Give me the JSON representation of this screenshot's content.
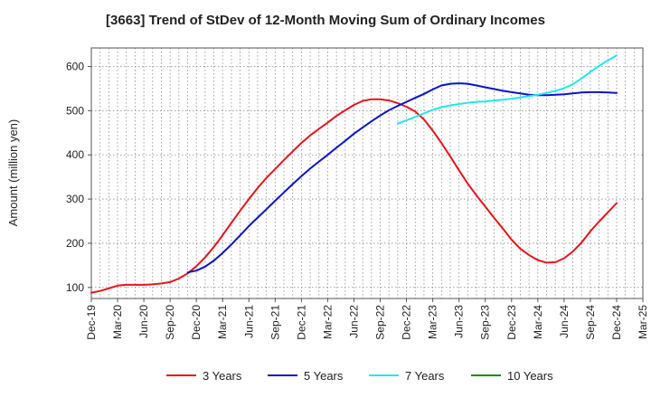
{
  "chart_data": {
    "type": "line",
    "title": "[3663]  Trend of StDev of 12-Month Moving Sum of Ordinary Incomes",
    "xlabel": "",
    "ylabel": "Amount (million yen)",
    "ylim": [
      75,
      642
    ],
    "yticks": [
      100,
      200,
      300,
      400,
      500,
      600
    ],
    "grid": true,
    "legend_position": "bottom",
    "categories": [
      "Dec-19",
      "Mar-20",
      "Jun-20",
      "Sep-20",
      "Dec-20",
      "Mar-21",
      "Jun-21",
      "Sep-21",
      "Dec-21",
      "Mar-22",
      "Jun-22",
      "Sep-22",
      "Dec-22",
      "Mar-23",
      "Jun-23",
      "Sep-23",
      "Dec-23",
      "Mar-24",
      "Jun-24",
      "Sep-24",
      "Dec-24",
      "Mar-25"
    ],
    "series": [
      {
        "name": "3 Years",
        "color": "#e8141b",
        "points": [
          [
            0,
            88
          ],
          [
            0.33,
            92
          ],
          [
            0.67,
            98
          ],
          [
            1,
            104
          ],
          [
            1.33,
            106
          ],
          [
            1.67,
            106
          ],
          [
            2,
            106
          ],
          [
            2.33,
            107
          ],
          [
            2.67,
            109
          ],
          [
            3,
            112
          ],
          [
            3.33,
            120
          ],
          [
            3.67,
            132
          ],
          [
            4,
            148
          ],
          [
            4.33,
            168
          ],
          [
            4.67,
            192
          ],
          [
            5,
            218
          ],
          [
            5.33,
            246
          ],
          [
            5.67,
            274
          ],
          [
            6,
            300
          ],
          [
            6.33,
            325
          ],
          [
            6.67,
            348
          ],
          [
            7,
            368
          ],
          [
            7.33,
            388
          ],
          [
            7.67,
            408
          ],
          [
            8,
            427
          ],
          [
            8.33,
            444
          ],
          [
            8.67,
            459
          ],
          [
            9,
            473
          ],
          [
            9.33,
            488
          ],
          [
            9.67,
            501
          ],
          [
            10,
            513
          ],
          [
            10.33,
            522
          ],
          [
            10.67,
            526
          ],
          [
            11,
            526
          ],
          [
            11.33,
            523
          ],
          [
            11.67,
            517
          ],
          [
            12,
            509
          ],
          [
            12.33,
            498
          ],
          [
            12.67,
            480
          ],
          [
            13,
            455
          ],
          [
            13.33,
            427
          ],
          [
            13.67,
            396
          ],
          [
            14,
            365
          ],
          [
            14.33,
            335
          ],
          [
            14.67,
            308
          ],
          [
            15,
            283
          ],
          [
            15.33,
            258
          ],
          [
            15.67,
            233
          ],
          [
            16,
            208
          ],
          [
            16.33,
            188
          ],
          [
            16.67,
            173
          ],
          [
            17,
            162
          ],
          [
            17.33,
            156
          ],
          [
            17.67,
            157
          ],
          [
            18,
            166
          ],
          [
            18.33,
            181
          ],
          [
            18.67,
            202
          ],
          [
            19,
            227
          ],
          [
            19.33,
            249
          ],
          [
            19.67,
            270
          ],
          [
            20,
            291
          ]
        ]
      },
      {
        "name": "5 Years",
        "color": "#0a14c8",
        "points": [
          [
            3.67,
            134
          ],
          [
            4,
            138
          ],
          [
            4.33,
            147
          ],
          [
            4.67,
            161
          ],
          [
            5,
            178
          ],
          [
            5.33,
            197
          ],
          [
            5.67,
            218
          ],
          [
            6,
            239
          ],
          [
            6.33,
            258
          ],
          [
            6.67,
            277
          ],
          [
            7,
            296
          ],
          [
            7.33,
            315
          ],
          [
            7.67,
            334
          ],
          [
            8,
            352
          ],
          [
            8.33,
            369
          ],
          [
            8.67,
            385
          ],
          [
            9,
            400
          ],
          [
            9.33,
            416
          ],
          [
            9.67,
            432
          ],
          [
            10,
            448
          ],
          [
            10.33,
            462
          ],
          [
            10.67,
            476
          ],
          [
            11,
            489
          ],
          [
            11.33,
            501
          ],
          [
            11.67,
            511
          ],
          [
            12,
            520
          ],
          [
            12.33,
            529
          ],
          [
            12.67,
            538
          ],
          [
            13,
            548
          ],
          [
            13.33,
            557
          ],
          [
            13.67,
            561
          ],
          [
            14,
            562
          ],
          [
            14.33,
            561
          ],
          [
            14.67,
            557
          ],
          [
            15,
            553
          ],
          [
            15.33,
            549
          ],
          [
            15.67,
            545
          ],
          [
            16,
            542
          ],
          [
            16.33,
            539
          ],
          [
            16.67,
            536
          ],
          [
            17,
            535
          ],
          [
            17.33,
            535
          ],
          [
            17.67,
            536
          ],
          [
            18,
            537
          ],
          [
            18.33,
            539
          ],
          [
            18.67,
            541
          ],
          [
            19,
            542
          ],
          [
            19.33,
            542
          ],
          [
            19.67,
            541
          ],
          [
            20,
            540
          ]
        ]
      },
      {
        "name": "7 Years",
        "color": "#22e8ec",
        "points": [
          [
            11.67,
            471
          ],
          [
            12,
            478
          ],
          [
            12.33,
            486
          ],
          [
            12.67,
            494
          ],
          [
            13,
            502
          ],
          [
            13.33,
            508
          ],
          [
            13.67,
            512
          ],
          [
            14,
            515
          ],
          [
            14.33,
            518
          ],
          [
            14.67,
            520
          ],
          [
            15,
            521
          ],
          [
            15.33,
            523
          ],
          [
            15.67,
            525
          ],
          [
            16,
            527
          ],
          [
            16.33,
            530
          ],
          [
            16.67,
            533
          ],
          [
            17,
            536
          ],
          [
            17.33,
            540
          ],
          [
            17.67,
            545
          ],
          [
            18,
            551
          ],
          [
            18.33,
            560
          ],
          [
            18.67,
            573
          ],
          [
            19,
            588
          ],
          [
            19.33,
            601
          ],
          [
            19.67,
            614
          ],
          [
            20,
            625
          ]
        ]
      },
      {
        "name": "10 Years",
        "color": "#1a8a1a",
        "points": []
      }
    ]
  }
}
